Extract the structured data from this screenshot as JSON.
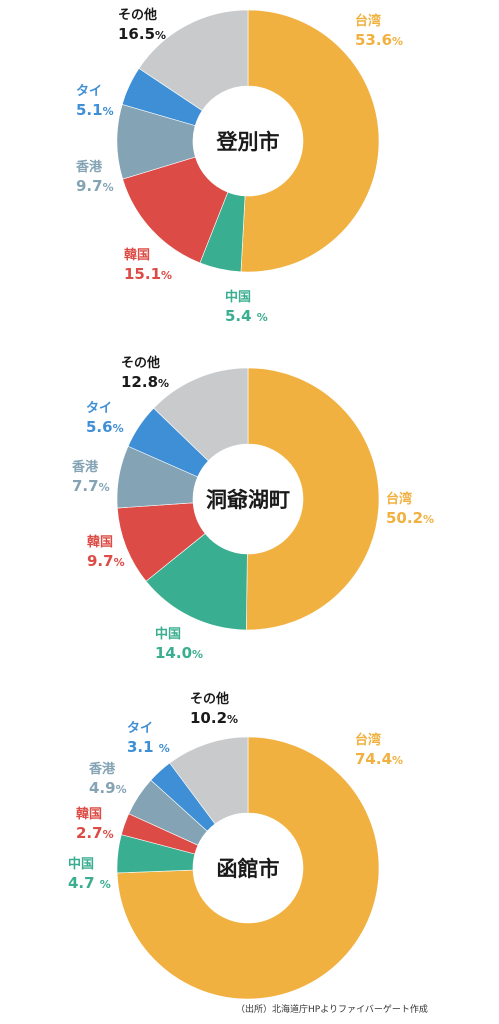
{
  "chart_data": [
    {
      "type": "pie",
      "title": "登別市",
      "slices": [
        {
          "label": "台湾",
          "value": 53.6,
          "value_text": "53.6",
          "color": "#f0b140"
        },
        {
          "label": "中国",
          "value": 5.4,
          "value_text": "5.4 ",
          "color": "#3aae90"
        },
        {
          "label": "韓国",
          "value": 15.1,
          "value_text": "15.1",
          "color": "#dc4b45"
        },
        {
          "label": "香港",
          "value": 9.7,
          "value_text": "9.7",
          "color": "#84a3b4"
        },
        {
          "label": "タイ",
          "value": 5.1,
          "value_text": "5.1",
          "color": "#3f8fd6"
        },
        {
          "label": "その他",
          "value": 16.5,
          "value_text": "16.5",
          "color": "#c9cacc"
        }
      ]
    },
    {
      "type": "pie",
      "title": "洞爺湖町",
      "slices": [
        {
          "label": "台湾",
          "value": 50.2,
          "value_text": "50.2",
          "color": "#f0b140"
        },
        {
          "label": "中国",
          "value": 14.0,
          "value_text": "14.0",
          "color": "#3aae90"
        },
        {
          "label": "韓国",
          "value": 9.7,
          "value_text": "9.7",
          "color": "#dc4b45"
        },
        {
          "label": "香港",
          "value": 7.7,
          "value_text": "7.7",
          "color": "#84a3b4"
        },
        {
          "label": "タイ",
          "value": 5.6,
          "value_text": "5.6",
          "color": "#3f8fd6"
        },
        {
          "label": "その他",
          "value": 12.8,
          "value_text": "12.8",
          "color": "#c9cacc"
        }
      ]
    },
    {
      "type": "pie",
      "title": "函館市",
      "slices": [
        {
          "label": "台湾",
          "value": 74.4,
          "value_text": "74.4",
          "color": "#f0b140"
        },
        {
          "label": "中国",
          "value": 4.7,
          "value_text": "4.7 ",
          "color": "#3aae90"
        },
        {
          "label": "韓国",
          "value": 2.7,
          "value_text": "2.7",
          "color": "#dc4b45"
        },
        {
          "label": "香港",
          "value": 4.9,
          "value_text": "4.9",
          "color": "#84a3b4"
        },
        {
          "label": "タイ",
          "value": 3.1,
          "value_text": "3.1 ",
          "color": "#3f8fd6"
        },
        {
          "label": "その他",
          "value": 10.2,
          "value_text": "10.2",
          "color": "#c9cacc"
        }
      ]
    }
  ],
  "percent_sign": "%",
  "source": "（出所）北海道庁HPよりファイバーゲート作成",
  "name_color_other": "#1a1a1a"
}
